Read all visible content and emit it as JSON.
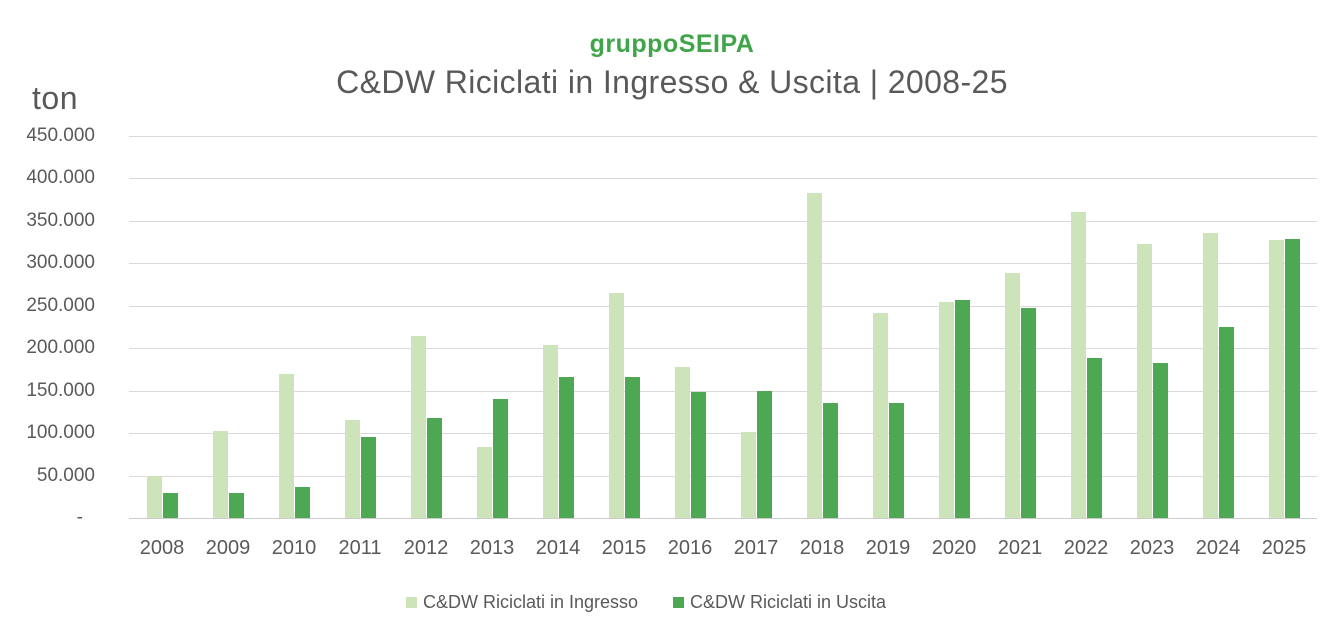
{
  "brand": {
    "label": "gruppoSEIPA",
    "color": "#3fa44a"
  },
  "chart_data": {
    "type": "bar",
    "title": "C&DW Riciclati in Ingresso & Uscita | 2008-25",
    "ylabel": "ton",
    "xlabel": "",
    "categories": [
      "2008",
      "2009",
      "2010",
      "2011",
      "2012",
      "2013",
      "2014",
      "2015",
      "2016",
      "2017",
      "2018",
      "2019",
      "2020",
      "2021",
      "2022",
      "2023",
      "2024",
      "2025"
    ],
    "series": [
      {
        "name": "C&DW Riciclati in Ingresso",
        "color": "#cde3ba",
        "values": [
          49000,
          102000,
          170000,
          116000,
          215000,
          84000,
          204000,
          265000,
          178000,
          101000,
          383000,
          242000,
          254000,
          289000,
          360000,
          323000,
          336000,
          327000
        ]
      },
      {
        "name": "C&DW Riciclati in Uscita",
        "color": "#4ea752",
        "values": [
          30000,
          29000,
          37000,
          96000,
          118000,
          140000,
          166000,
          166000,
          148000,
          150000,
          135000,
          135000,
          257000,
          248000,
          188000,
          183000,
          225000,
          329000
        ]
      }
    ],
    "ylim": [
      0,
      450000
    ],
    "y_ticks": [
      {
        "value": 450000,
        "label": "450.000"
      },
      {
        "value": 400000,
        "label": "400.000"
      },
      {
        "value": 350000,
        "label": "350.000"
      },
      {
        "value": 300000,
        "label": "300.000"
      },
      {
        "value": 250000,
        "label": "250.000"
      },
      {
        "value": 200000,
        "label": "200.000"
      },
      {
        "value": 150000,
        "label": "150.000"
      },
      {
        "value": 100000,
        "label": "100.000"
      },
      {
        "value": 50000,
        "label": "50.000"
      },
      {
        "value": 0,
        "label": "-"
      }
    ],
    "grid": true,
    "legend_position": "bottom"
  }
}
